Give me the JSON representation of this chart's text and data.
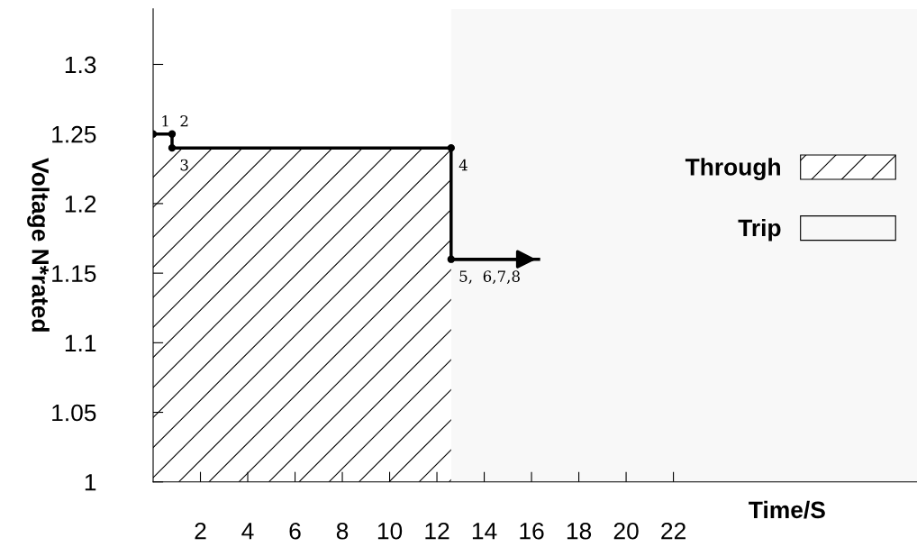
{
  "chart_data": {
    "type": "step",
    "xlabel": "Time/S",
    "ylabel": "Voltage N*rated",
    "xlim": [
      0,
      32.3
    ],
    "ylim": [
      1,
      1.34
    ],
    "xticks": [
      2,
      4,
      6,
      8,
      10,
      12,
      14,
      16,
      18,
      20,
      22
    ],
    "yticks": [
      1,
      1.05,
      1.1,
      1.15,
      1.2,
      1.25,
      1.3
    ],
    "series": [
      {
        "name": "Through",
        "type": "area",
        "color": "#000000",
        "x": [
          0,
          12.6
        ],
        "values": [
          1.24,
          1.24
        ]
      },
      {
        "color": "#000000",
        "x": [
          0,
          0.8,
          0.8,
          12.6,
          12.6,
          16.3
        ],
        "values": [
          1.25,
          1.25,
          1.24,
          1.24,
          1.16,
          1.16
        ]
      }
    ],
    "bands": [
      {
        "axis": "x",
        "from": 12.6,
        "to": 32.3,
        "label": "Trip",
        "color": "#f8f8f8"
      }
    ],
    "marker": "circle",
    "line_style": "solid",
    "legend": "right",
    "grid": false,
    "annotations": [
      {
        "text": "1",
        "x": 0,
        "y": 1.25
      },
      {
        "text": "2",
        "x": 0.8,
        "y": 1.25
      },
      {
        "text": "3",
        "x": 0.8,
        "y": 1.24
      },
      {
        "text": "4",
        "x": 12.6,
        "y": 1.24
      },
      {
        "text": "5,  6,7,8",
        "x": 12.6,
        "y": 1.16
      }
    ]
  }
}
